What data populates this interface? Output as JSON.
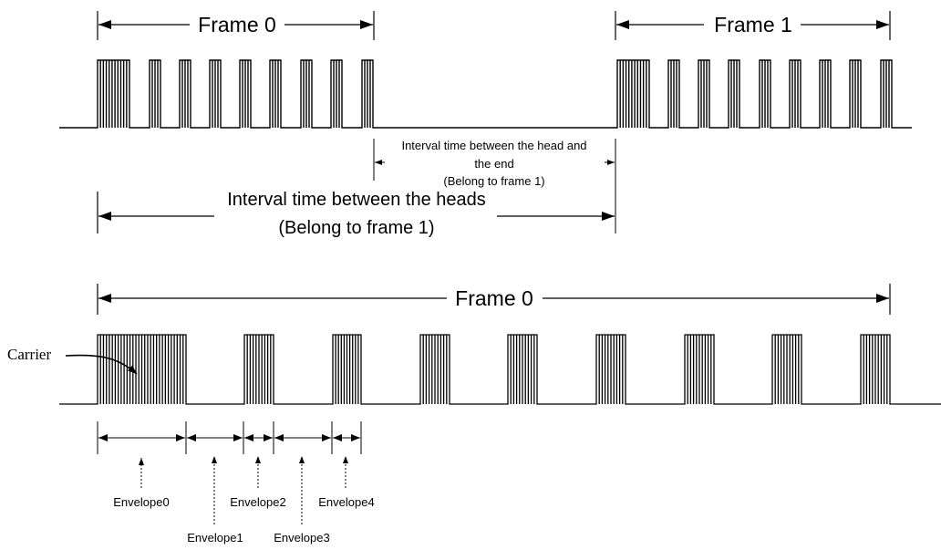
{
  "top": {
    "frame0_label": "Frame 0",
    "frame1_label": "Frame 1",
    "interval_head_end_line1": "Interval time between the head and",
    "interval_head_end_line2": "the end",
    "interval_head_end_line3": "(Belong to frame 1)",
    "interval_heads_line1": "Interval time between the heads",
    "interval_heads_line2": "(Belong to frame 1)"
  },
  "bottom": {
    "frame0_label": "Frame 0",
    "carrier_label": "Carrier",
    "envelopes": [
      "Envelope0",
      "Envelope1",
      "Envelope2",
      "Envelope3",
      "Envelope4"
    ]
  },
  "colors": {
    "line": "#000000",
    "background": "#ffffff"
  }
}
